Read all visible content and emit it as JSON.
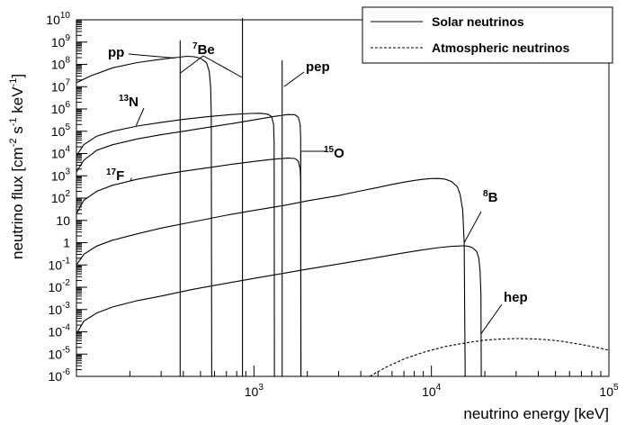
{
  "chart_data": {
    "type": "line",
    "xlabel": "neutrino energy [keV]",
    "ylabel": "neutrino flux [cm⁻² s⁻¹ keV⁻¹]",
    "xscale": "log",
    "yscale": "log",
    "xlim": [
      100,
      100000
    ],
    "ylim": [
      1e-06,
      10000000000.0
    ],
    "x_ticks": [
      {
        "value": 1000,
        "base": "10",
        "exp": "3"
      },
      {
        "value": 10000,
        "base": "10",
        "exp": "4"
      },
      {
        "value": 100000,
        "base": "10",
        "exp": "5"
      }
    ],
    "y_ticks": [
      {
        "value": 10000000000.0,
        "base": "10",
        "exp": "10"
      },
      {
        "value": 1000000000.0,
        "base": "10",
        "exp": "9"
      },
      {
        "value": 100000000.0,
        "base": "10",
        "exp": "8"
      },
      {
        "value": 10000000.0,
        "base": "10",
        "exp": "7"
      },
      {
        "value": 1000000.0,
        "base": "10",
        "exp": "6"
      },
      {
        "value": 100000.0,
        "base": "10",
        "exp": "5"
      },
      {
        "value": 10000.0,
        "base": "10",
        "exp": "4"
      },
      {
        "value": 1000.0,
        "base": "10",
        "exp": "3"
      },
      {
        "value": 100.0,
        "base": "10",
        "exp": "2"
      },
      {
        "value": 10,
        "base": "10",
        "exp": ""
      },
      {
        "value": 1,
        "base": "1",
        "exp": ""
      },
      {
        "value": 0.1,
        "base": "10",
        "exp": "-1"
      },
      {
        "value": 0.01,
        "base": "10",
        "exp": "-2"
      },
      {
        "value": 0.001,
        "base": "10",
        "exp": "-3"
      },
      {
        "value": 0.0001,
        "base": "10",
        "exp": "-4"
      },
      {
        "value": 1e-05,
        "base": "10",
        "exp": "-5"
      },
      {
        "value": 1e-06,
        "base": "10",
        "exp": "-6"
      }
    ],
    "legend": {
      "position": "top-right",
      "entries": [
        {
          "label": "Solar neutrinos",
          "style": "solid"
        },
        {
          "label": "Atmospheric neutrinos",
          "style": "dashed"
        }
      ]
    },
    "series": [
      {
        "id": "pp",
        "label_prefix": "",
        "label_main": "pp",
        "style": "solid",
        "points": [
          [
            100,
            15000000.0
          ],
          [
            120,
            30000000.0
          ],
          [
            160,
            70000000.0
          ],
          [
            220,
            120000000.0
          ],
          [
            300,
            170000000.0
          ],
          [
            380,
            210000000.0
          ],
          [
            420,
            230000000.0
          ],
          [
            460,
            220000000.0
          ],
          [
            500,
            190000000.0
          ],
          [
            540,
            120000000.0
          ],
          [
            560,
            50000000.0
          ],
          [
            570,
            10000000.0
          ],
          [
            575,
            500000.0
          ],
          [
            578,
            1e-06
          ]
        ]
      },
      {
        "id": "7Be-low",
        "label_prefix": "7",
        "label_main": "Be",
        "style": "solid",
        "points": [
          [
            384,
            1e-06
          ],
          [
            384,
            1200000000.0
          ]
        ]
      },
      {
        "id": "7Be-high",
        "label_prefix": "",
        "label_main": "",
        "style": "solid",
        "points": [
          [
            862,
            1e-06
          ],
          [
            862,
            12000000000.0
          ]
        ]
      },
      {
        "id": "pep",
        "label_prefix": "",
        "label_main": "pep",
        "style": "solid",
        "points": [
          [
            1442,
            1e-06
          ],
          [
            1442,
            150000000.0
          ]
        ]
      },
      {
        "id": "13N",
        "label_prefix": "13",
        "label_main": "N",
        "style": "solid",
        "points": [
          [
            100,
            8000.0
          ],
          [
            110,
            25000.0
          ],
          [
            130,
            60000.0
          ],
          [
            160,
            100000.0
          ],
          [
            220,
            170000.0
          ],
          [
            300,
            250000.0
          ],
          [
            400,
            340000.0
          ],
          [
            550,
            450000.0
          ],
          [
            750,
            560000.0
          ],
          [
            950,
            630000.0
          ],
          [
            1100,
            640000.0
          ],
          [
            1200,
            580000.0
          ],
          [
            1260,
            450000.0
          ],
          [
            1290,
            200000.0
          ],
          [
            1300,
            30000.0
          ],
          [
            1305,
            1e-06
          ]
        ]
      },
      {
        "id": "15O",
        "label_prefix": "15",
        "label_main": "O",
        "style": "solid",
        "points": [
          [
            100,
            1500.0
          ],
          [
            110,
            5000.0
          ],
          [
            130,
            14000.0
          ],
          [
            160,
            25000.0
          ],
          [
            220,
            45000.0
          ],
          [
            300,
            70000.0
          ],
          [
            400,
            100000.0
          ],
          [
            550,
            150000.0
          ],
          [
            750,
            220000.0
          ],
          [
            1000,
            320000.0
          ],
          [
            1300,
            460000.0
          ],
          [
            1550,
            560000.0
          ],
          [
            1700,
            550000.0
          ],
          [
            1780,
            420000.0
          ],
          [
            1820,
            200000.0
          ],
          [
            1834,
            50000.0
          ],
          [
            1838,
            1e-06
          ]
        ]
      },
      {
        "id": "17F",
        "label_prefix": "17",
        "label_main": "F",
        "style": "solid",
        "points": [
          [
            100,
            20
          ],
          [
            110,
            80
          ],
          [
            130,
            200
          ],
          [
            160,
            380
          ],
          [
            220,
            700
          ],
          [
            300,
            1100.0
          ],
          [
            400,
            1600.0
          ],
          [
            550,
            2300.0
          ],
          [
            750,
            3300.0
          ],
          [
            1000,
            4400.0
          ],
          [
            1300,
            5600.0
          ],
          [
            1550,
            6200.0
          ],
          [
            1700,
            6000.0
          ],
          [
            1780,
            4500.0
          ],
          [
            1820,
            2000.0
          ],
          [
            1835,
            500
          ],
          [
            1840,
            1e-06
          ]
        ]
      },
      {
        "id": "8B",
        "label_prefix": "8",
        "label_main": "B",
        "style": "solid",
        "points": [
          [
            100,
            0.1
          ],
          [
            110,
            0.3
          ],
          [
            130,
            0.7
          ],
          [
            160,
            1.3
          ],
          [
            220,
            2.5
          ],
          [
            300,
            4.5
          ],
          [
            450,
            8.5
          ],
          [
            700,
            17
          ],
          [
            1000,
            28
          ],
          [
            1500,
            48
          ],
          [
            2000,
            75
          ],
          [
            3000,
            130
          ],
          [
            4000,
            210
          ],
          [
            5000,
            300
          ],
          [
            6000,
            410
          ],
          [
            7000,
            520
          ],
          [
            8000,
            620
          ],
          [
            9000,
            700
          ],
          [
            10000,
            750
          ],
          [
            11000,
            760
          ],
          [
            12000,
            700
          ],
          [
            13000,
            550
          ],
          [
            14000,
            320
          ],
          [
            14500,
            150
          ],
          [
            15000,
            30
          ],
          [
            15300,
            1
          ],
          [
            15500,
            1e-06
          ]
        ]
      },
      {
        "id": "hep",
        "label_prefix": "",
        "label_main": "hep",
        "style": "solid",
        "points": [
          [
            100,
            8e-05
          ],
          [
            110,
            0.0003
          ],
          [
            130,
            0.0007
          ],
          [
            160,
            0.0013
          ],
          [
            220,
            0.0025
          ],
          [
            300,
            0.004
          ],
          [
            450,
            0.008
          ],
          [
            700,
            0.015
          ],
          [
            1000,
            0.025
          ],
          [
            2000,
            0.065
          ],
          [
            3000,
            0.11
          ],
          [
            5000,
            0.22
          ],
          [
            7000,
            0.35
          ],
          [
            9000,
            0.48
          ],
          [
            11000,
            0.6
          ],
          [
            13000,
            0.68
          ],
          [
            15000,
            0.72
          ],
          [
            16000,
            0.7
          ],
          [
            17000,
            0.6
          ],
          [
            18000,
            0.4
          ],
          [
            18500,
            0.2
          ],
          [
            18800,
            0.05
          ],
          [
            19000,
            0.005
          ],
          [
            19100,
            1e-06
          ]
        ]
      },
      {
        "id": "atmospheric",
        "label_prefix": "",
        "label_main": "",
        "style": "dashed",
        "points": [
          [
            4500,
            1e-06
          ],
          [
            5500,
            2.5e-06
          ],
          [
            7000,
            6e-06
          ],
          [
            9000,
            1.2e-05
          ],
          [
            12000,
            2.2e-05
          ],
          [
            16000,
            3.3e-05
          ],
          [
            20000,
            4.2e-05
          ],
          [
            25000,
            4.8e-05
          ],
          [
            30000,
            5e-05
          ],
          [
            38000,
            4.8e-05
          ],
          [
            45000,
            4.4e-05
          ],
          [
            55000,
            3.7e-05
          ],
          [
            70000,
            2.7e-05
          ],
          [
            85000,
            2e-05
          ],
          [
            100000,
            1.5e-05
          ]
        ]
      }
    ],
    "annotations": [
      {
        "id": "pp",
        "prefix": "",
        "main": "pp",
        "target": [
          380,
          210000000.0
        ]
      },
      {
        "id": "7Be",
        "prefix": "7",
        "main": "Be",
        "target": [
          384,
          10000000.0
        ],
        "target2": [
          862,
          10000000.0
        ]
      },
      {
        "id": "pep",
        "prefix": "",
        "main": "pep",
        "target": [
          1442,
          10000000.0
        ]
      },
      {
        "id": "13N",
        "prefix": "13",
        "main": "N",
        "target": [
          230,
          180000.0
        ]
      },
      {
        "id": "15O",
        "prefix": "15",
        "main": "O",
        "target": [
          1838,
          3000.0
        ]
      },
      {
        "id": "17F",
        "prefix": "17",
        "main": "F",
        "target": [
          230,
          800
        ]
      },
      {
        "id": "8B",
        "prefix": "8",
        "main": "B",
        "target": [
          15300,
          1
        ]
      },
      {
        "id": "hep",
        "prefix": "",
        "main": "hep",
        "target": [
          19000,
          8e-05
        ]
      }
    ]
  }
}
